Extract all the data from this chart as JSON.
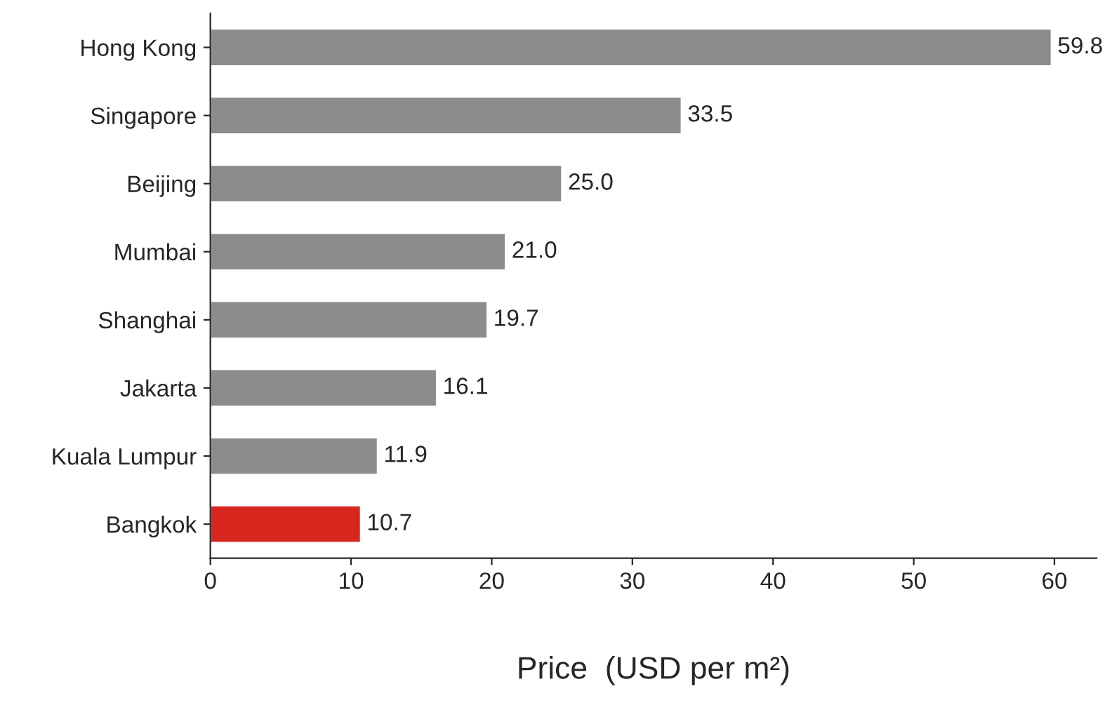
{
  "chart_data": {
    "type": "bar",
    "orientation": "horizontal",
    "xlabel": "Price  (USD per m²)",
    "categories": [
      "Hong Kong",
      "Singapore",
      "Beijing",
      "Mumbai",
      "Shanghai",
      "Jakarta",
      "Kuala Lumpur",
      "Bangkok"
    ],
    "values": [
      59.8,
      33.5,
      25.0,
      21.0,
      19.7,
      16.1,
      11.9,
      10.7
    ],
    "colors": [
      "#8c8c8c",
      "#8c8c8c",
      "#8c8c8c",
      "#8c8c8c",
      "#8c8c8c",
      "#8c8c8c",
      "#8c8c8c",
      "#d7261e"
    ],
    "value_labels": [
      "59.8",
      "33.5",
      "25.0",
      "21.0",
      "19.7",
      "16.1",
      "11.9",
      "10.7"
    ],
    "xlim": [
      0,
      63
    ],
    "xticks": [
      0,
      10,
      20,
      30,
      40,
      50,
      60
    ],
    "grid": false,
    "legend": false
  }
}
